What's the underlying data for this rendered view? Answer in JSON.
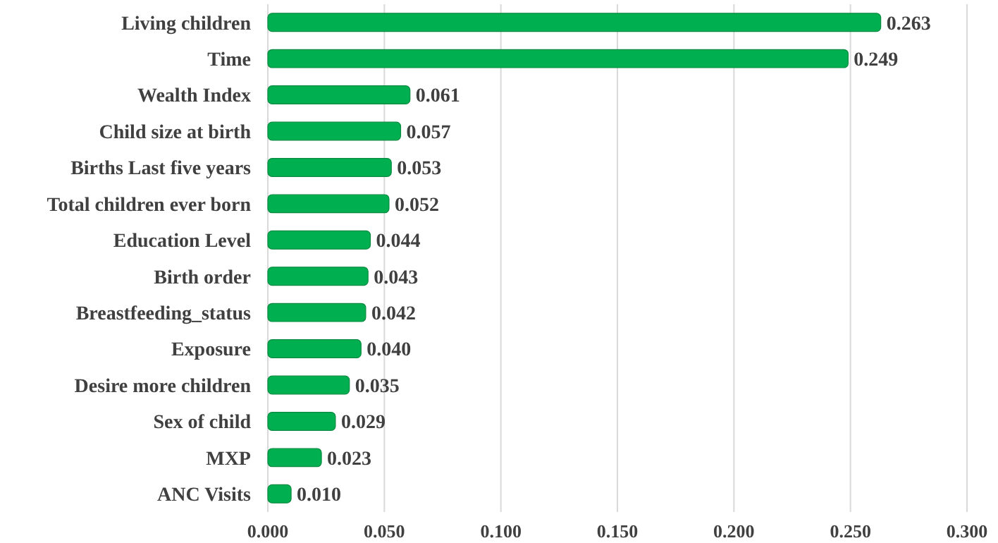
{
  "chart_data": {
    "type": "bar",
    "orientation": "horizontal",
    "categories": [
      "Living children",
      "Time",
      "Wealth Index",
      "Child size at birth",
      "Births Last five years",
      "Total children ever born",
      "Education Level",
      "Birth order",
      "Breastfeeding_status",
      "Exposure",
      "Desire more children",
      "Sex of child",
      "MXP",
      "ANC Visits"
    ],
    "values": [
      0.263,
      0.249,
      0.061,
      0.057,
      0.053,
      0.052,
      0.044,
      0.043,
      0.042,
      0.04,
      0.035,
      0.029,
      0.023,
      0.01
    ],
    "value_labels": [
      "0.263",
      "0.249",
      "0.061",
      "0.057",
      "0.053",
      "0.052",
      "0.044",
      "0.043",
      "0.042",
      "0.040",
      "0.035",
      "0.029",
      "0.023",
      "0.010"
    ],
    "color": "#00b050",
    "xlim": [
      0,
      0.3
    ],
    "xticks": [
      {
        "value": 0,
        "label": "0.000"
      },
      {
        "value": 0.05,
        "label": "0.050"
      },
      {
        "value": 0.1,
        "label": "0.100"
      },
      {
        "value": 0.15,
        "label": "0.150"
      },
      {
        "value": 0.2,
        "label": "0.200"
      },
      {
        "value": 0.25,
        "label": "0.250"
      },
      {
        "value": 0.3,
        "label": "0.300"
      }
    ],
    "grid": "x"
  }
}
